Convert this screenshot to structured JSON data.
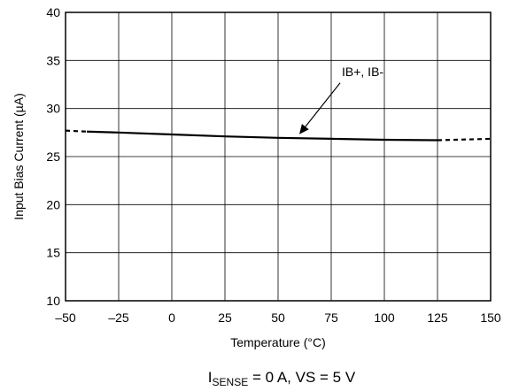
{
  "chart_data": {
    "type": "line",
    "xlabel": "Temperature (°C)",
    "ylabel": "Input Bias Current (µA)",
    "xlim": [
      -50,
      150
    ],
    "ylim": [
      10,
      40
    ],
    "xticks": [
      -50,
      -25,
      0,
      25,
      50,
      75,
      100,
      125,
      150
    ],
    "xtick_labels": [
      "–50",
      "–25",
      "0",
      "25",
      "50",
      "75",
      "100",
      "125",
      "150"
    ],
    "yticks": [
      10,
      15,
      20,
      25,
      30,
      35,
      40
    ],
    "ytick_labels": [
      "10",
      "15",
      "20",
      "25",
      "30",
      "35",
      "40"
    ],
    "grid": true,
    "series": [
      {
        "name": "IB+, IB-",
        "color": "#000000",
        "solid": {
          "x": [
            -40,
            -25,
            0,
            25,
            50,
            75,
            100,
            125
          ],
          "y": [
            27.6,
            27.5,
            27.3,
            27.1,
            26.95,
            26.85,
            26.75,
            26.7
          ]
        },
        "dashed_segments": [
          {
            "x": [
              -50,
              -40
            ],
            "y": [
              27.7,
              27.6
            ]
          },
          {
            "x": [
              125,
              150
            ],
            "y": [
              26.7,
              26.85
            ]
          }
        ]
      }
    ],
    "annotations": [
      {
        "text": "IB+, IB-",
        "points_to": {
          "x": 60,
          "y": 26.95
        }
      }
    ],
    "caption": {
      "main": "I",
      "subscript": "SENSE",
      "rest": " = 0 A, VS = 5 V"
    }
  }
}
